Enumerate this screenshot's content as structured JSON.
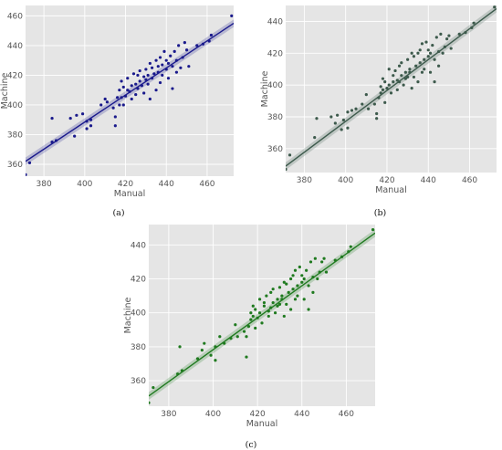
{
  "chart_data": [
    {
      "type": "scatter",
      "panel_label": "(a)",
      "xlabel": "Manual",
      "ylabel": "Machine",
      "xlim": [
        371,
        473
      ],
      "ylim": [
        352,
        467
      ],
      "xticks": [
        380,
        400,
        420,
        440,
        460
      ],
      "yticks": [
        360,
        380,
        400,
        420,
        440,
        460
      ],
      "grid": true,
      "color": "#1a1a8c",
      "regression": {
        "x": [
          371,
          473
        ],
        "y": [
          362,
          455
        ]
      },
      "points": [
        [
          371,
          353
        ],
        [
          373,
          361
        ],
        [
          384,
          375
        ],
        [
          384,
          391
        ],
        [
          386,
          376
        ],
        [
          393,
          391
        ],
        [
          395,
          379
        ],
        [
          396,
          393
        ],
        [
          399,
          394
        ],
        [
          401,
          384
        ],
        [
          401,
          389
        ],
        [
          403,
          386
        ],
        [
          403,
          390
        ],
        [
          408,
          400
        ],
        [
          410,
          404
        ],
        [
          411,
          402
        ],
        [
          414,
          398
        ],
        [
          415,
          386
        ],
        [
          415,
          392
        ],
        [
          416,
          405
        ],
        [
          417,
          400
        ],
        [
          417,
          410
        ],
        [
          418,
          405
        ],
        [
          418,
          416
        ],
        [
          419,
          400
        ],
        [
          419,
          412
        ],
        [
          420,
          406
        ],
        [
          421,
          410
        ],
        [
          421,
          418
        ],
        [
          422,
          409
        ],
        [
          423,
          404
        ],
        [
          423,
          413
        ],
        [
          424,
          421
        ],
        [
          425,
          414
        ],
        [
          425,
          407
        ],
        [
          426,
          411
        ],
        [
          426,
          420
        ],
        [
          427,
          416
        ],
        [
          427,
          423
        ],
        [
          428,
          413
        ],
        [
          429,
          419
        ],
        [
          429,
          408
        ],
        [
          430,
          417
        ],
        [
          430,
          424
        ],
        [
          431,
          414
        ],
        [
          431,
          420
        ],
        [
          432,
          404
        ],
        [
          432,
          428
        ],
        [
          433,
          418
        ],
        [
          433,
          425
        ],
        [
          434,
          421
        ],
        [
          435,
          410
        ],
        [
          435,
          430
        ],
        [
          436,
          422
        ],
        [
          436,
          426
        ],
        [
          437,
          415
        ],
        [
          437,
          432
        ],
        [
          438,
          427
        ],
        [
          438,
          420
        ],
        [
          439,
          436
        ],
        [
          440,
          424
        ],
        [
          440,
          430
        ],
        [
          441,
          418
        ],
        [
          441,
          428
        ],
        [
          442,
          433
        ],
        [
          443,
          411
        ],
        [
          443,
          426
        ],
        [
          444,
          436
        ],
        [
          445,
          422
        ],
        [
          445,
          430
        ],
        [
          446,
          440
        ],
        [
          447,
          425
        ],
        [
          448,
          432
        ],
        [
          449,
          442
        ],
        [
          450,
          437
        ],
        [
          451,
          426
        ],
        [
          455,
          440
        ],
        [
          458,
          441
        ],
        [
          461,
          443
        ],
        [
          462,
          447
        ],
        [
          472,
          460
        ]
      ]
    },
    {
      "type": "scatter",
      "panel_label": "(b)",
      "xlabel": "Manual",
      "ylabel": "Machine",
      "xlim": [
        371,
        473
      ],
      "ylim": [
        345,
        450
      ],
      "xticks": [
        380,
        400,
        420,
        440,
        460
      ],
      "yticks": [
        360,
        380,
        400,
        420,
        440
      ],
      "grid": true,
      "color": "#3d5a4c",
      "regression": {
        "x": [
          371,
          473
        ],
        "y": [
          349,
          448
        ]
      },
      "points": [
        [
          371,
          347
        ],
        [
          373,
          356
        ],
        [
          385,
          367
        ],
        [
          386,
          379
        ],
        [
          393,
          380
        ],
        [
          395,
          376
        ],
        [
          396,
          381
        ],
        [
          398,
          372
        ],
        [
          399,
          378
        ],
        [
          401,
          383
        ],
        [
          401,
          373
        ],
        [
          403,
          384
        ],
        [
          405,
          385
        ],
        [
          408,
          388
        ],
        [
          410,
          394
        ],
        [
          411,
          385
        ],
        [
          414,
          388
        ],
        [
          415,
          382
        ],
        [
          415,
          379
        ],
        [
          416,
          392
        ],
        [
          417,
          395
        ],
        [
          417,
          399
        ],
        [
          418,
          397
        ],
        [
          418,
          404
        ],
        [
          419,
          389
        ],
        [
          419,
          402
        ],
        [
          420,
          398
        ],
        [
          421,
          400
        ],
        [
          421,
          410
        ],
        [
          422,
          395
        ],
        [
          423,
          402
        ],
        [
          423,
          406
        ],
        [
          424,
          409
        ],
        [
          425,
          403
        ],
        [
          425,
          397
        ],
        [
          426,
          402
        ],
        [
          426,
          412
        ],
        [
          427,
          406
        ],
        [
          427,
          414
        ],
        [
          428,
          400
        ],
        [
          429,
          408
        ],
        [
          429,
          404
        ],
        [
          430,
          405
        ],
        [
          430,
          416
        ],
        [
          431,
          410
        ],
        [
          431,
          408
        ],
        [
          432,
          398
        ],
        [
          432,
          420
        ],
        [
          433,
          405
        ],
        [
          433,
          418
        ],
        [
          434,
          412
        ],
        [
          435,
          402
        ],
        [
          435,
          420
        ],
        [
          436,
          414
        ],
        [
          436,
          422
        ],
        [
          437,
          408
        ],
        [
          437,
          426
        ],
        [
          438,
          416
        ],
        [
          438,
          410
        ],
        [
          439,
          427
        ],
        [
          440,
          418
        ],
        [
          440,
          422
        ],
        [
          441,
          408
        ],
        [
          441,
          420
        ],
        [
          442,
          425
        ],
        [
          443,
          402
        ],
        [
          443,
          416
        ],
        [
          444,
          430
        ],
        [
          445,
          412
        ],
        [
          445,
          421
        ],
        [
          446,
          432
        ],
        [
          447,
          420
        ],
        [
          448,
          424
        ],
        [
          449,
          429
        ],
        [
          450,
          431
        ],
        [
          451,
          423
        ],
        [
          455,
          432
        ],
        [
          458,
          433
        ],
        [
          461,
          436
        ],
        [
          462,
          439
        ],
        [
          472,
          449
        ]
      ]
    },
    {
      "type": "scatter",
      "panel_label": "(c)",
      "xlabel": "Manual",
      "ylabel": "Machine",
      "xlim": [
        371,
        473
      ],
      "ylim": [
        345,
        452
      ],
      "xticks": [
        380,
        400,
        420,
        440,
        460
      ],
      "yticks": [
        360,
        380,
        400,
        420,
        440
      ],
      "grid": true,
      "color": "#1f7a1f",
      "regression": {
        "x": [
          371,
          473
        ],
        "y": [
          351,
          447
        ]
      },
      "points": [
        [
          371,
          347
        ],
        [
          373,
          356
        ],
        [
          384,
          364
        ],
        [
          385,
          380
        ],
        [
          386,
          366
        ],
        [
          393,
          373
        ],
        [
          395,
          378
        ],
        [
          396,
          382
        ],
        [
          399,
          375
        ],
        [
          401,
          380
        ],
        [
          401,
          372
        ],
        [
          403,
          386
        ],
        [
          405,
          382
        ],
        [
          408,
          385
        ],
        [
          410,
          393
        ],
        [
          411,
          386
        ],
        [
          414,
          389
        ],
        [
          415,
          374
        ],
        [
          415,
          386
        ],
        [
          416,
          392
        ],
        [
          417,
          396
        ],
        [
          417,
          400
        ],
        [
          418,
          398
        ],
        [
          418,
          404
        ],
        [
          419,
          391
        ],
        [
          419,
          402
        ],
        [
          420,
          397
        ],
        [
          421,
          400
        ],
        [
          421,
          408
        ],
        [
          422,
          394
        ],
        [
          423,
          404
        ],
        [
          423,
          406
        ],
        [
          424,
          410
        ],
        [
          425,
          401
        ],
        [
          425,
          398
        ],
        [
          426,
          403
        ],
        [
          426,
          412
        ],
        [
          427,
          406
        ],
        [
          427,
          414
        ],
        [
          428,
          400
        ],
        [
          429,
          408
        ],
        [
          429,
          404
        ],
        [
          430,
          405
        ],
        [
          430,
          415
        ],
        [
          431,
          410
        ],
        [
          431,
          408
        ],
        [
          432,
          398
        ],
        [
          432,
          418
        ],
        [
          433,
          405
        ],
        [
          433,
          417
        ],
        [
          434,
          412
        ],
        [
          435,
          402
        ],
        [
          435,
          420
        ],
        [
          436,
          414
        ],
        [
          436,
          422
        ],
        [
          437,
          408
        ],
        [
          437,
          425
        ],
        [
          438,
          416
        ],
        [
          438,
          410
        ],
        [
          439,
          427
        ],
        [
          440,
          418
        ],
        [
          440,
          422
        ],
        [
          441,
          408
        ],
        [
          441,
          420
        ],
        [
          442,
          425
        ],
        [
          443,
          402
        ],
        [
          443,
          416
        ],
        [
          444,
          430
        ],
        [
          445,
          412
        ],
        [
          445,
          421
        ],
        [
          446,
          432
        ],
        [
          447,
          420
        ],
        [
          448,
          424
        ],
        [
          449,
          430
        ],
        [
          450,
          432
        ],
        [
          451,
          424
        ],
        [
          455,
          431
        ],
        [
          458,
          433
        ],
        [
          461,
          436
        ],
        [
          462,
          439
        ],
        [
          472,
          449
        ]
      ]
    }
  ]
}
